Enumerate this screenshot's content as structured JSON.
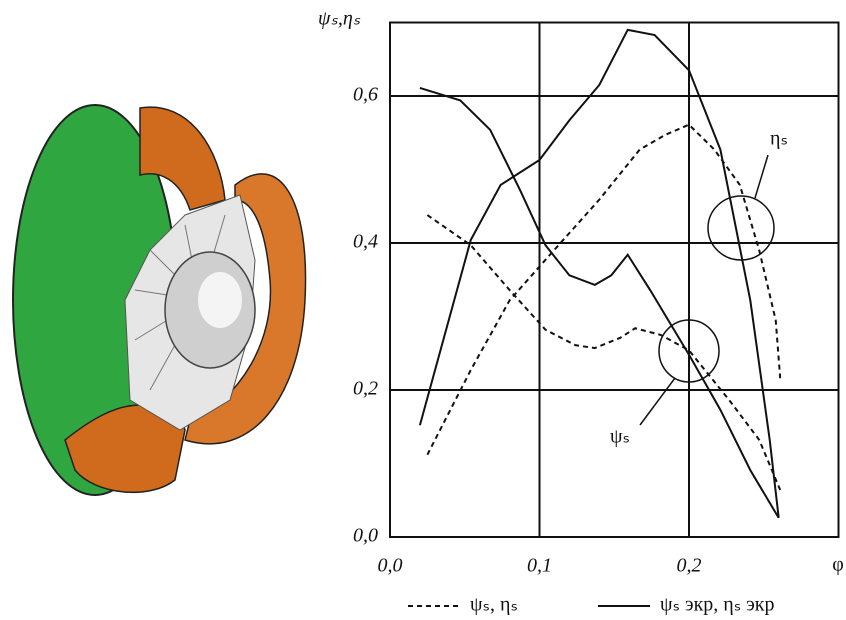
{
  "chart_data": {
    "type": "line",
    "y_label": "ψₛ,ηₛ",
    "x_label": "φ",
    "xlim": [
      0,
      0.3
    ],
    "ylim": [
      0,
      0.7
    ],
    "xticks": [
      {
        "value": 0,
        "label": "0,0"
      },
      {
        "value": 0.1,
        "label": "0,1"
      },
      {
        "value": 0.2,
        "label": "0,2"
      }
    ],
    "yticks": [
      {
        "value": 0,
        "label": "0,0"
      },
      {
        "value": 0.2,
        "label": "0,2"
      },
      {
        "value": 0.4,
        "label": "0,4"
      },
      {
        "value": 0.6,
        "label": "0,6"
      }
    ],
    "grid": true,
    "color": "#111111",
    "legend": [
      {
        "label": "ψₛ, ηₛ",
        "style": "dashed"
      },
      {
        "label": "ψₛ экр, ηₛ экр",
        "style": "solid"
      }
    ],
    "annotations": [
      "ηₛ",
      "ψₛ"
    ],
    "series": [
      {
        "style": "solid",
        "x": [
          0.02,
          0.054,
          0.074,
          0.1,
          0.12,
          0.14,
          0.159,
          0.177,
          0.2,
          0.221,
          0.241,
          0.254,
          0.26
        ],
        "values": [
          0.152,
          0.404,
          0.479,
          0.513,
          0.567,
          0.615,
          0.69,
          0.683,
          0.635,
          0.527,
          0.322,
          0.132,
          0.026
        ]
      },
      {
        "style": "solid",
        "x": [
          0.02,
          0.047,
          0.067,
          0.087,
          0.104,
          0.12,
          0.137,
          0.148,
          0.159,
          0.174,
          0.2,
          0.221,
          0.241,
          0.26
        ],
        "values": [
          0.611,
          0.594,
          0.554,
          0.472,
          0.397,
          0.356,
          0.343,
          0.356,
          0.384,
          0.336,
          0.248,
          0.173,
          0.091,
          0.026
        ]
      },
      {
        "style": "dashed",
        "x": [
          0.025,
          0.054,
          0.08,
          0.107,
          0.14,
          0.167,
          0.184,
          0.2,
          0.217,
          0.234,
          0.247,
          0.258,
          0.261
        ],
        "values": [
          0.112,
          0.227,
          0.322,
          0.384,
          0.459,
          0.527,
          0.547,
          0.561,
          0.527,
          0.479,
          0.39,
          0.295,
          0.216
        ]
      },
      {
        "style": "dashed",
        "x": [
          0.025,
          0.054,
          0.08,
          0.104,
          0.124,
          0.137,
          0.154,
          0.164,
          0.181,
          0.2,
          0.227,
          0.247,
          0.261
        ],
        "values": [
          0.438,
          0.397,
          0.336,
          0.282,
          0.261,
          0.257,
          0.271,
          0.284,
          0.275,
          0.254,
          0.186,
          0.132,
          0.064
        ]
      }
    ]
  }
}
